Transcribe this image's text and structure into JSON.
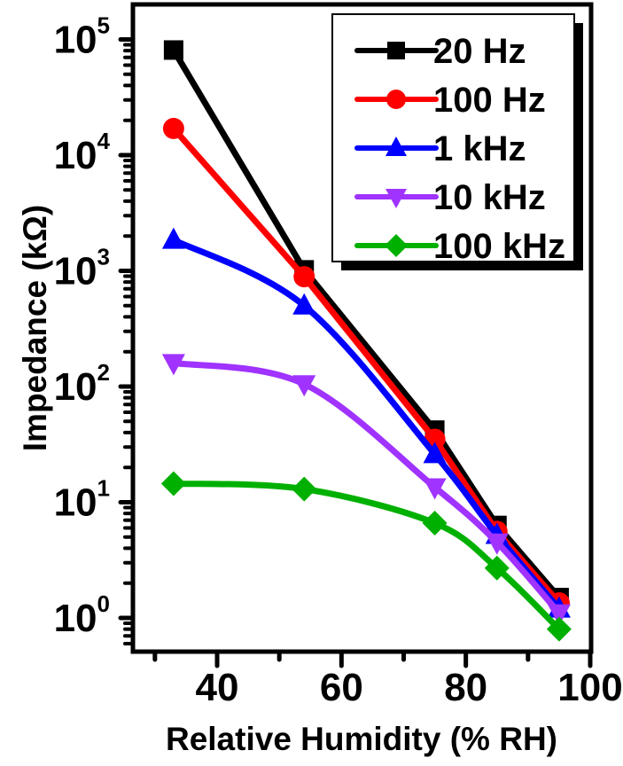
{
  "chart_data": {
    "type": "line",
    "title": "",
    "xlabel": "Relative Humidity (% RH)",
    "ylabel": "Impedance (kΩ)",
    "xlim": [
      25,
      100
    ],
    "ylim": [
      0.51,
      200000
    ],
    "yscale": "log",
    "x_ticks": [
      "40",
      "60",
      "80",
      "100"
    ],
    "x_tick_values": [
      40,
      60,
      80,
      100
    ],
    "x_minor_ticks": [
      30,
      50,
      70,
      90
    ],
    "y_ticks": [
      {
        "value": 1,
        "base": "10",
        "exp": "0"
      },
      {
        "value": 10,
        "base": "10",
        "exp": "1"
      },
      {
        "value": 100,
        "base": "10",
        "exp": "2"
      },
      {
        "value": 1000,
        "base": "10",
        "exp": "3"
      },
      {
        "value": 10000,
        "base": "10",
        "exp": "4"
      },
      {
        "value": 100000,
        "base": "10",
        "exp": "5"
      }
    ],
    "grid": false,
    "legend_position": "top-right",
    "x": [
      33,
      54,
      75,
      85,
      95
    ],
    "series": [
      {
        "name": "20 Hz",
        "color": "#000000",
        "marker": "square",
        "curve": "linear",
        "values": [
          81000,
          1020,
          42,
          6.3,
          1.5
        ]
      },
      {
        "name": "100 Hz",
        "color": "#ff0000",
        "marker": "circle",
        "curve": "linear",
        "values": [
          17000,
          890,
          35,
          5.6,
          1.35
        ]
      },
      {
        "name": "1 kHz",
        "color": "#0000ff",
        "marker": "triangle-up",
        "curve": "smooth",
        "values": [
          1850,
          500,
          26,
          5.2,
          1.2
        ]
      },
      {
        "name": "10 kHz",
        "color": "#a033ff",
        "marker": "triangle-down",
        "curve": "smooth",
        "values": [
          160,
          105,
          13.5,
          4.5,
          1.1
        ]
      },
      {
        "name": "100 kHz",
        "color": "#00b000",
        "marker": "diamond",
        "curve": "smooth",
        "values": [
          14.5,
          13,
          6.6,
          2.7,
          0.8
        ]
      }
    ]
  }
}
